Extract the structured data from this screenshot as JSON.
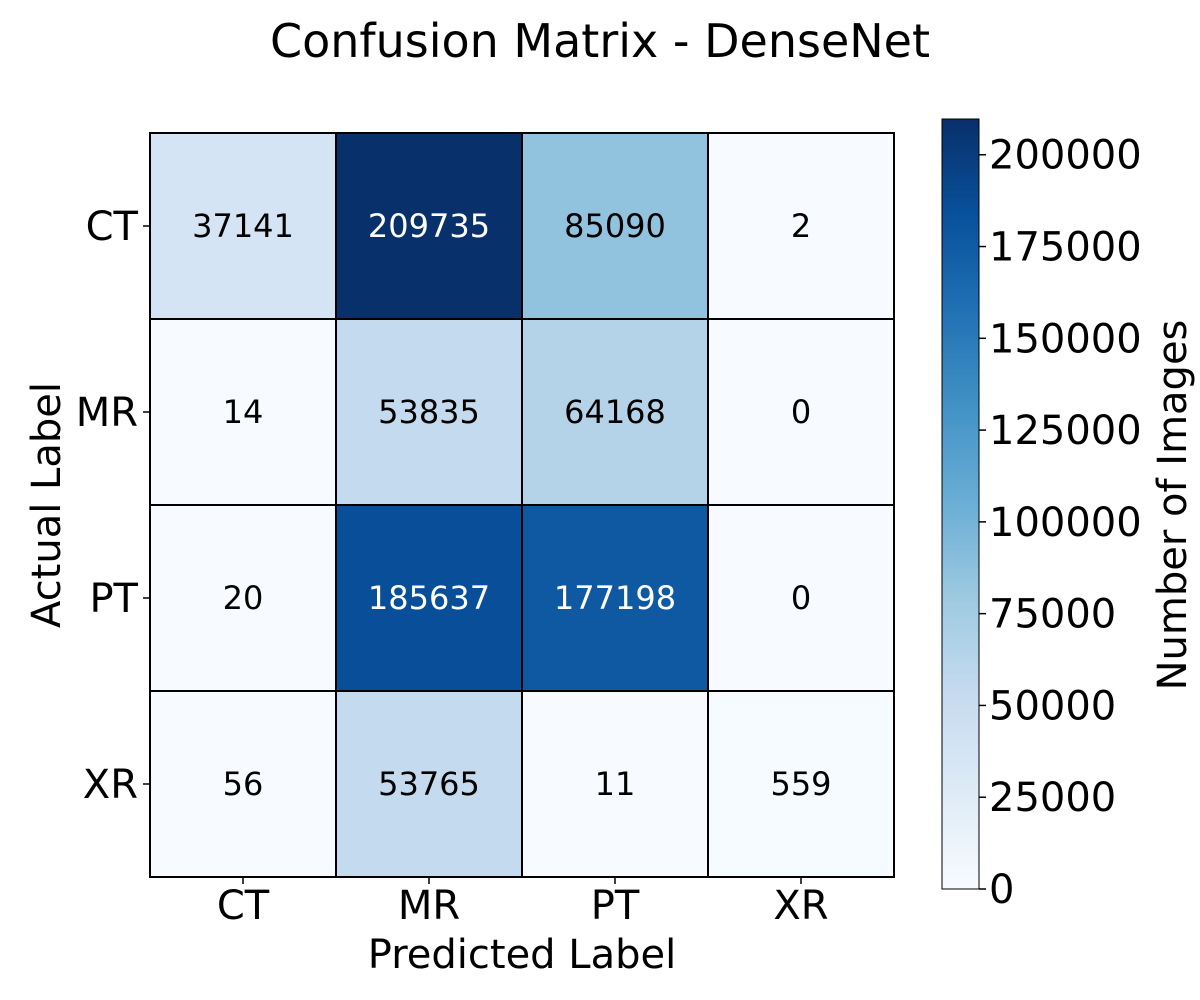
{
  "chart_data": {
    "type": "heatmap",
    "title": "Confusion Matrix - DenseNet",
    "xlabel": "Predicted Label",
    "ylabel": "Actual Label",
    "x_categories": [
      "CT",
      "MR",
      "PT",
      "XR"
    ],
    "y_categories": [
      "CT",
      "MR",
      "PT",
      "XR"
    ],
    "values": [
      [
        37141,
        209735,
        85090,
        2
      ],
      [
        14,
        53835,
        64168,
        0
      ],
      [
        20,
        185637,
        177198,
        0
      ],
      [
        56,
        53765,
        11,
        559
      ]
    ],
    "colorbar": {
      "label": "Number of Images",
      "range": [
        0,
        209735
      ],
      "ticks": [
        0,
        25000,
        50000,
        75000,
        100000,
        125000,
        150000,
        175000,
        200000
      ]
    },
    "colormap": [
      "#f7fbff",
      "#deebf7",
      "#c6dbef",
      "#9ecae1",
      "#6baed6",
      "#4292c6",
      "#2171b5",
      "#08519c",
      "#08306b"
    ]
  }
}
